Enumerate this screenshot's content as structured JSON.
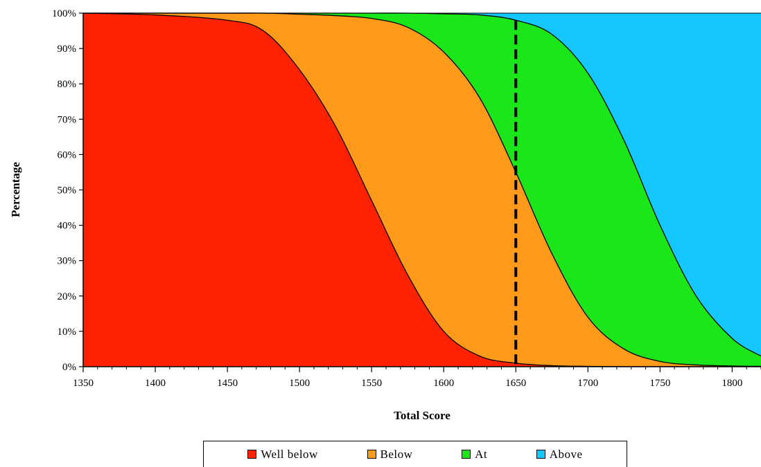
{
  "chart_data": {
    "type": "area",
    "stacked": true,
    "percent": true,
    "title": "",
    "xlabel": "Total Score",
    "ylabel": "Percentage",
    "xlim": [
      1350,
      1820
    ],
    "ylim": [
      0,
      100
    ],
    "x_ticks": [
      1350,
      1400,
      1450,
      1500,
      1550,
      1600,
      1650,
      1700,
      1750,
      1800
    ],
    "x_tick_labels": [
      "1350",
      "1400",
      "1450",
      "1500",
      "1550",
      "1600",
      "1650",
      "1700",
      "1750",
      "1800"
    ],
    "y_ticks": [
      0,
      10,
      20,
      30,
      40,
      50,
      60,
      70,
      80,
      90,
      100
    ],
    "y_tick_labels": [
      "0%",
      "10%",
      "20%",
      "30%",
      "40%",
      "50%",
      "60%",
      "70%",
      "80%",
      "90%",
      "100%"
    ],
    "grid": false,
    "legend_position": "bottom",
    "x": [
      1350,
      1400,
      1450,
      1475,
      1500,
      1525,
      1550,
      1575,
      1600,
      1625,
      1650,
      1675,
      1700,
      1725,
      1750,
      1775,
      1800,
      1820
    ],
    "cumulative_boundaries": [
      {
        "name": "Well below",
        "color": "#ff2200",
        "values": [
          100,
          99.5,
          98,
          95,
          84,
          68,
          47,
          26,
          10,
          3,
          1,
          0.3,
          0.1,
          0,
          0,
          0,
          0,
          0
        ]
      },
      {
        "name": "Below",
        "color": "#ff9a1a",
        "values": [
          100,
          100,
          100,
          100,
          99.7,
          99.3,
          98.5,
          96,
          89,
          76,
          55,
          32,
          14,
          5,
          1.5,
          0.5,
          0.2,
          0.1
        ]
      },
      {
        "name": "At",
        "color": "#1ae61a",
        "values": [
          100,
          100,
          100,
          100,
          100,
          100,
          100,
          100,
          99.8,
          99.5,
          98,
          94,
          83,
          64,
          40,
          20,
          8,
          3
        ]
      },
      {
        "name": "Above",
        "color": "#14c8ff",
        "values": [
          100,
          100,
          100,
          100,
          100,
          100,
          100,
          100,
          100,
          100,
          100,
          100,
          100,
          100,
          100,
          100,
          100,
          100
        ]
      }
    ],
    "reference_line": {
      "x": 1650,
      "style": "dashed",
      "color": "#000000"
    }
  }
}
